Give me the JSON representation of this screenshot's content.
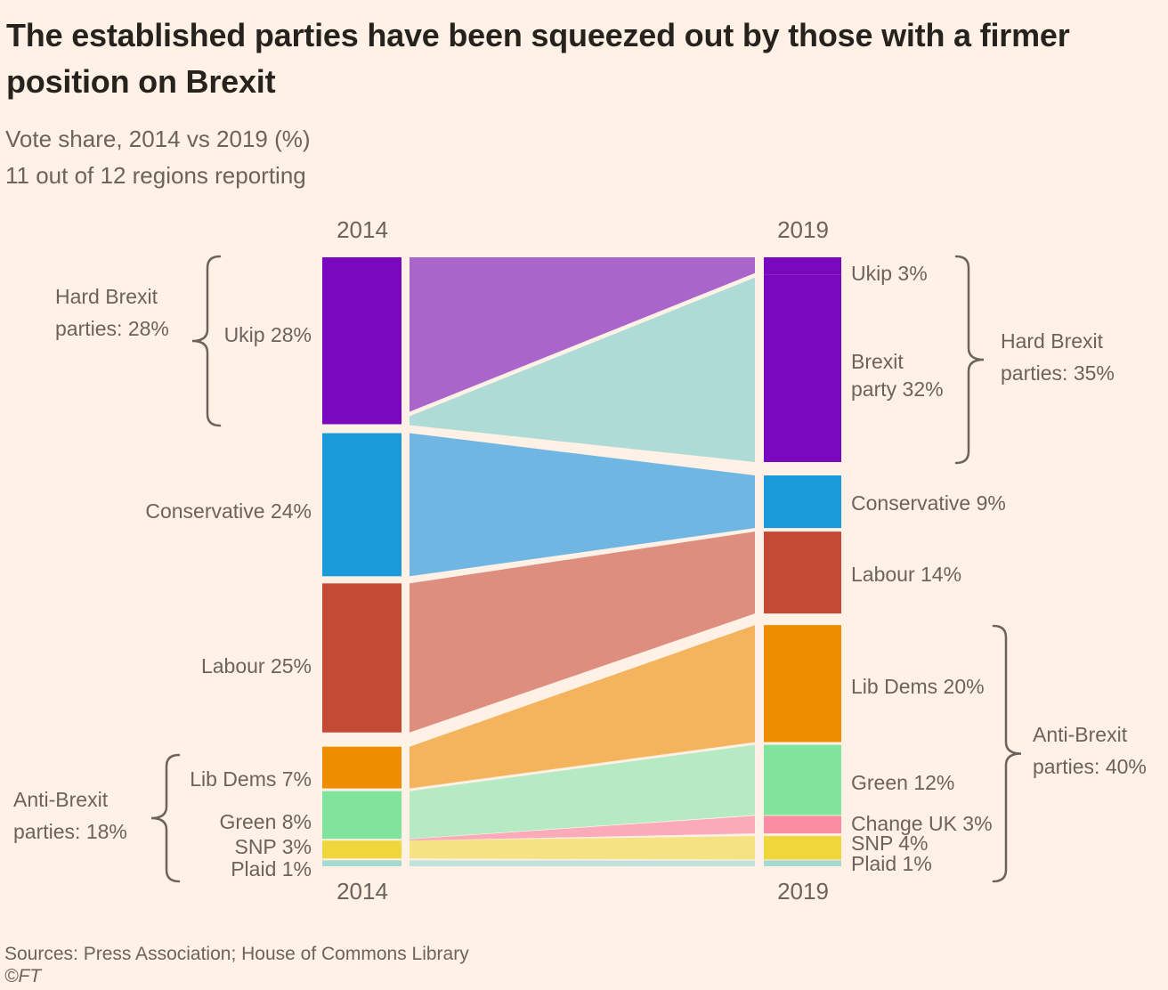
{
  "header": {
    "title_lines": [
      "The established parties have been squeezed out by those with a firmer",
      "position on Brexit"
    ],
    "subtitle_lines": [
      "Vote share, 2014 vs 2019 (%)",
      "11 out of 12 regions reporting"
    ]
  },
  "footer": {
    "sources": "Sources: Press Association; House of Commons Library",
    "copyright": "©FT"
  },
  "chart_data": {
    "type": "alluvial-flow",
    "unit": "%",
    "background": "#FFF1E5",
    "columns": [
      "2014",
      "2019"
    ],
    "parties": {
      "Ukip": {
        "color": "#7A08BE",
        "flow_color": "#A965C9"
      },
      "Brexit party": {
        "color": "#7A08BE",
        "flow_color": "#AFDBD6"
      },
      "Conservative": {
        "color": "#1B9AD9",
        "flow_color": "#70B6E2"
      },
      "Labour": {
        "color": "#C54A36",
        "flow_color": "#DD8E7E"
      },
      "Lib Dems": {
        "color": "#EE8D00",
        "flow_color": "#F4B45D"
      },
      "Green": {
        "color": "#81E49D",
        "flow_color": "#B5EAC3"
      },
      "Change UK": {
        "color": "#F98DA1",
        "flow_color": "#FAAAB8"
      },
      "SNP": {
        "color": "#EFD63A",
        "flow_color": "#F4E283"
      },
      "Plaid": {
        "color": "#A4D9D2",
        "flow_color": "#BFE3DB"
      }
    },
    "vote_share_2014": [
      {
        "party": "Ukip",
        "pct": 28,
        "label": "Ukip 28%"
      },
      {
        "party": "Conservative",
        "pct": 24,
        "label": "Conservative 24%"
      },
      {
        "party": "Labour",
        "pct": 25,
        "label": "Labour 25%"
      },
      {
        "party": "Lib Dems",
        "pct": 7,
        "label": "Lib Dems 7%"
      },
      {
        "party": "Green",
        "pct": 8,
        "label": "Green 8%"
      },
      {
        "party": "SNP",
        "pct": 3,
        "label": "SNP 3%"
      },
      {
        "party": "Plaid",
        "pct": 1,
        "label": "Plaid 1%"
      }
    ],
    "vote_share_2019": [
      {
        "party": "Ukip",
        "pct": 3,
        "label": "Ukip 3%"
      },
      {
        "party": "Brexit party",
        "pct": 32,
        "label": "Brexit\nparty 32%"
      },
      {
        "party": "Conservative",
        "pct": 9,
        "label": "Conservative 9%"
      },
      {
        "party": "Labour",
        "pct": 14,
        "label": "Labour 14%"
      },
      {
        "party": "Lib Dems",
        "pct": 20,
        "label": "Lib Dems 20%"
      },
      {
        "party": "Green",
        "pct": 12,
        "label": "Green 12%"
      },
      {
        "party": "Change UK",
        "pct": 3,
        "label": "Change UK 3%"
      },
      {
        "party": "SNP",
        "pct": 4,
        "label": "SNP 4%"
      },
      {
        "party": "Plaid",
        "pct": 1,
        "label": "Plaid 1%"
      }
    ],
    "annotations": {
      "hard_brexit_2014": {
        "lines": [
          "Hard Brexit",
          "parties: 28%"
        ],
        "total_pct": 28
      },
      "anti_brexit_2014": {
        "lines": [
          "Anti-Brexit",
          "parties: 18%"
        ],
        "total_pct": 18
      },
      "hard_brexit_2019": {
        "lines": [
          "Hard Brexit",
          "parties: 35%"
        ],
        "total_pct": 35
      },
      "anti_brexit_2019": {
        "lines": [
          "Anti-Brexit",
          "parties: 40%"
        ],
        "total_pct": 40
      }
    }
  }
}
